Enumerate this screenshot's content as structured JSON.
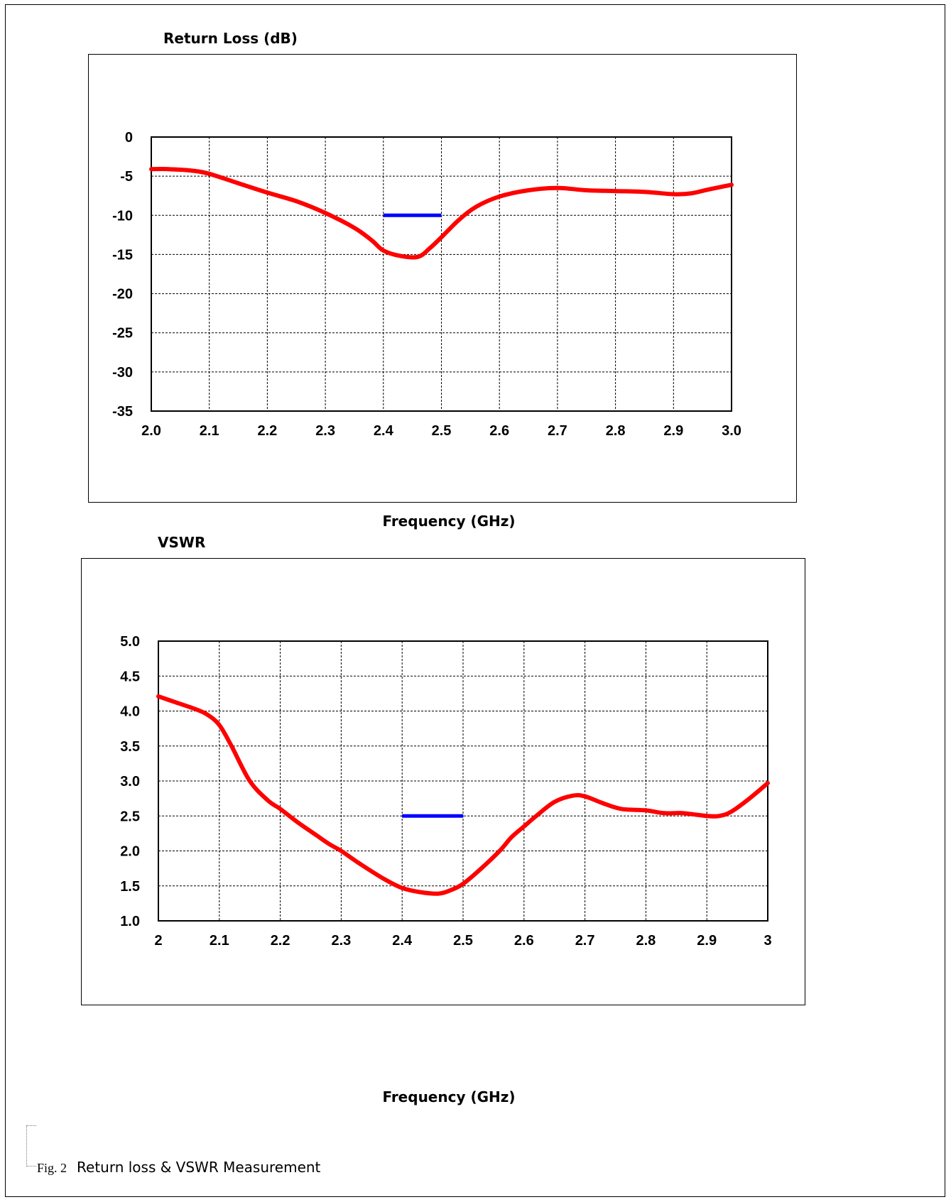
{
  "charts": {
    "rl_title": "Return Loss (dB)",
    "rl_xlabel": "Frequency (GHz)",
    "vswr_title": "VSWR",
    "vswr_xlabel": "Frequency (GHz)"
  },
  "caption": {
    "fig_number": "Fig. 2",
    "text": "Return loss & VSWR Measurement"
  },
  "colors": {
    "measured_curve": "#ff0000",
    "spec_line": "#0000ff",
    "grid": "#000000"
  },
  "chart_data": [
    {
      "type": "line",
      "title": "Return Loss (dB)",
      "xlabel": "Frequency (GHz)",
      "ylabel": "",
      "xlim": [
        2.0,
        3.0
      ],
      "ylim": [
        -35,
        0
      ],
      "xticks": [
        "2.0",
        "2.1",
        "2.2",
        "2.3",
        "2.4",
        "2.5",
        "2.6",
        "2.7",
        "2.8",
        "2.9",
        "3.0"
      ],
      "yticks": [
        "0",
        "-5",
        "-10",
        "-15",
        "-20",
        "-25",
        "-30",
        "-35"
      ],
      "grid": true,
      "series": [
        {
          "x": [
            2.0,
            2.03,
            2.07,
            2.1,
            2.15,
            2.2,
            2.25,
            2.3,
            2.35,
            2.38,
            2.4,
            2.43,
            2.46,
            2.48,
            2.5,
            2.53,
            2.56,
            2.6,
            2.65,
            2.7,
            2.75,
            2.8,
            2.85,
            2.9,
            2.93,
            2.96,
            3.0
          ],
          "y": [
            -4.1,
            -4.1,
            -4.3,
            -4.7,
            -5.9,
            -7.1,
            -8.2,
            -9.7,
            -11.6,
            -13.2,
            -14.5,
            -15.2,
            -15.3,
            -14.2,
            -12.8,
            -10.6,
            -8.9,
            -7.6,
            -6.8,
            -6.5,
            -6.8,
            -6.9,
            -7.0,
            -7.3,
            -7.2,
            -6.7,
            -6.1
          ]
        },
        {
          "x": [
            2.4,
            2.5
          ],
          "y": [
            -10,
            -10
          ]
        }
      ]
    },
    {
      "type": "line",
      "title": "VSWR",
      "xlabel": "Frequency (GHz)",
      "ylabel": "",
      "xlim": [
        2.0,
        3.0
      ],
      "ylim": [
        1.0,
        5.0
      ],
      "xticks": [
        "2",
        "2.1",
        "2.2",
        "2.3",
        "2.4",
        "2.5",
        "2.6",
        "2.7",
        "2.8",
        "2.9",
        "3"
      ],
      "yticks": [
        "5.0",
        "4.5",
        "4.0",
        "3.5",
        "3.0",
        "2.5",
        "2.0",
        "1.5",
        "1.0"
      ],
      "grid": true,
      "series": [
        {
          "x": [
            2.0,
            2.03,
            2.06,
            2.08,
            2.1,
            2.12,
            2.15,
            2.18,
            2.2,
            2.23,
            2.26,
            2.28,
            2.3,
            2.33,
            2.37,
            2.4,
            2.43,
            2.46,
            2.48,
            2.5,
            2.53,
            2.56,
            2.58,
            2.6,
            2.62,
            2.65,
            2.68,
            2.7,
            2.73,
            2.76,
            2.8,
            2.83,
            2.86,
            2.9,
            2.92,
            2.94,
            2.97,
            3.0
          ],
          "y": [
            4.21,
            4.12,
            4.03,
            3.95,
            3.8,
            3.5,
            3.0,
            2.72,
            2.6,
            2.4,
            2.22,
            2.1,
            2.0,
            1.82,
            1.6,
            1.47,
            1.41,
            1.39,
            1.44,
            1.53,
            1.75,
            2.0,
            2.2,
            2.35,
            2.5,
            2.7,
            2.79,
            2.78,
            2.68,
            2.6,
            2.58,
            2.54,
            2.54,
            2.5,
            2.5,
            2.56,
            2.75,
            2.97
          ]
        },
        {
          "x": [
            2.4,
            2.5
          ],
          "y": [
            2.5,
            2.5
          ]
        }
      ]
    }
  ]
}
